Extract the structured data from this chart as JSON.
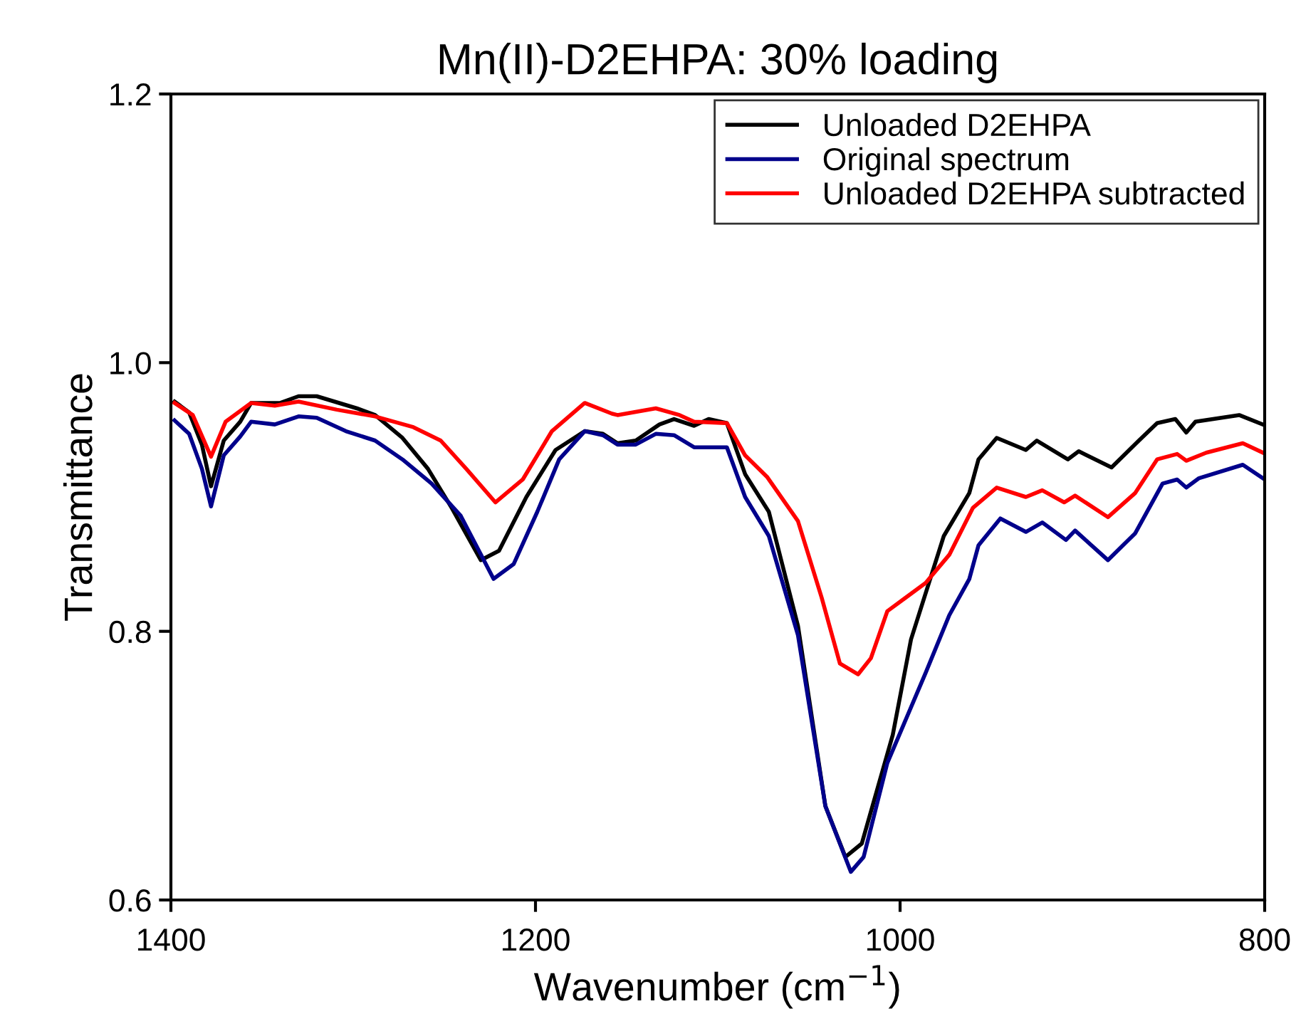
{
  "chart_data": {
    "type": "line",
    "title": "Mn(II)-D2EHPA: 30% loading",
    "xlabel": "Wavenumber (cm$^{−1}$)",
    "ylabel": "Transmittance",
    "xlim": [
      1400,
      800
    ],
    "ylim": [
      0.6,
      1.2
    ],
    "xticks": [
      1400,
      1200,
      1000,
      800
    ],
    "yticks": [
      0.6,
      0.8,
      {
        "value": 1.0,
        "label": "1.0"
      },
      {
        "value": 1.2,
        "label": "1.2"
      }
    ],
    "grid": false,
    "legend": "top right",
    "marker": "none",
    "line_style": "solid",
    "series": [
      {
        "name": "Unloaded D2EHPA",
        "color": "#000000",
        "x": [
          1398,
          1390,
          1383,
          1378,
          1371,
          1362,
          1356,
          1340,
          1330,
          1320,
          1298,
          1288,
          1273,
          1259,
          1246,
          1230,
          1220,
          1205,
          1189,
          1173,
          1163,
          1155,
          1145,
          1132,
          1124,
          1113,
          1105,
          1095,
          1085,
          1072,
          1056,
          1041,
          1030,
          1021,
          1004,
          994,
          976,
          962,
          957,
          947,
          931,
          925,
          908,
          902,
          884,
          869,
          859,
          849,
          843,
          838,
          814,
          801
        ],
        "values": [
          0.971,
          0.963,
          0.939,
          0.908,
          0.942,
          0.956,
          0.97,
          0.97,
          0.975,
          0.975,
          0.966,
          0.961,
          0.944,
          0.921,
          0.892,
          0.853,
          0.86,
          0.9,
          0.935,
          0.949,
          0.947,
          0.94,
          0.942,
          0.954,
          0.958,
          0.953,
          0.958,
          0.955,
          0.917,
          0.889,
          0.804,
          0.67,
          0.632,
          0.642,
          0.723,
          0.794,
          0.871,
          0.903,
          0.928,
          0.944,
          0.935,
          0.942,
          0.928,
          0.934,
          0.922,
          0.942,
          0.955,
          0.958,
          0.948,
          0.956,
          0.961,
          0.954
        ]
      },
      {
        "name": "Original spectrum",
        "color": "#00008b",
        "x": [
          1398,
          1390,
          1383,
          1378,
          1371,
          1362,
          1356,
          1343,
          1330,
          1320,
          1304,
          1288,
          1273,
          1257,
          1241,
          1223,
          1212,
          1199,
          1187,
          1173,
          1163,
          1155,
          1145,
          1134,
          1124,
          1113,
          1105,
          1095,
          1085,
          1072,
          1056,
          1041,
          1027,
          1020,
          1007,
          986,
          973,
          962,
          957,
          945,
          931,
          922,
          909,
          904,
          886,
          871,
          856,
          848,
          843,
          836,
          812,
          801
        ],
        "values": [
          0.957,
          0.947,
          0.921,
          0.893,
          0.931,
          0.945,
          0.956,
          0.954,
          0.96,
          0.959,
          0.949,
          0.942,
          0.928,
          0.91,
          0.886,
          0.839,
          0.85,
          0.889,
          0.928,
          0.949,
          0.946,
          0.939,
          0.939,
          0.947,
          0.946,
          0.937,
          0.937,
          0.937,
          0.9,
          0.871,
          0.797,
          0.67,
          0.621,
          0.632,
          0.702,
          0.769,
          0.812,
          0.839,
          0.864,
          0.884,
          0.874,
          0.881,
          0.868,
          0.875,
          0.853,
          0.873,
          0.91,
          0.913,
          0.907,
          0.914,
          0.924,
          0.914
        ]
      },
      {
        "name": "Unloaded D2EHPA subtracted",
        "color": "#ff0000",
        "x": [
          1398,
          1388,
          1378,
          1370,
          1356,
          1343,
          1330,
          1309,
          1288,
          1267,
          1252,
          1238,
          1222,
          1207,
          1191,
          1173,
          1158,
          1155,
          1134,
          1121,
          1113,
          1095,
          1085,
          1073,
          1056,
          1043,
          1033,
          1023,
          1016,
          1007,
          986,
          973,
          960,
          947,
          931,
          922,
          910,
          904,
          886,
          871,
          859,
          848,
          843,
          832,
          812,
          801
        ],
        "values": [
          0.97,
          0.961,
          0.93,
          0.956,
          0.97,
          0.968,
          0.971,
          0.965,
          0.96,
          0.952,
          0.942,
          0.921,
          0.896,
          0.913,
          0.949,
          0.97,
          0.962,
          0.961,
          0.966,
          0.961,
          0.956,
          0.955,
          0.931,
          0.915,
          0.882,
          0.825,
          0.776,
          0.768,
          0.78,
          0.815,
          0.836,
          0.857,
          0.892,
          0.907,
          0.9,
          0.905,
          0.896,
          0.901,
          0.885,
          0.903,
          0.928,
          0.932,
          0.927,
          0.933,
          0.94,
          0.933
        ]
      }
    ]
  }
}
